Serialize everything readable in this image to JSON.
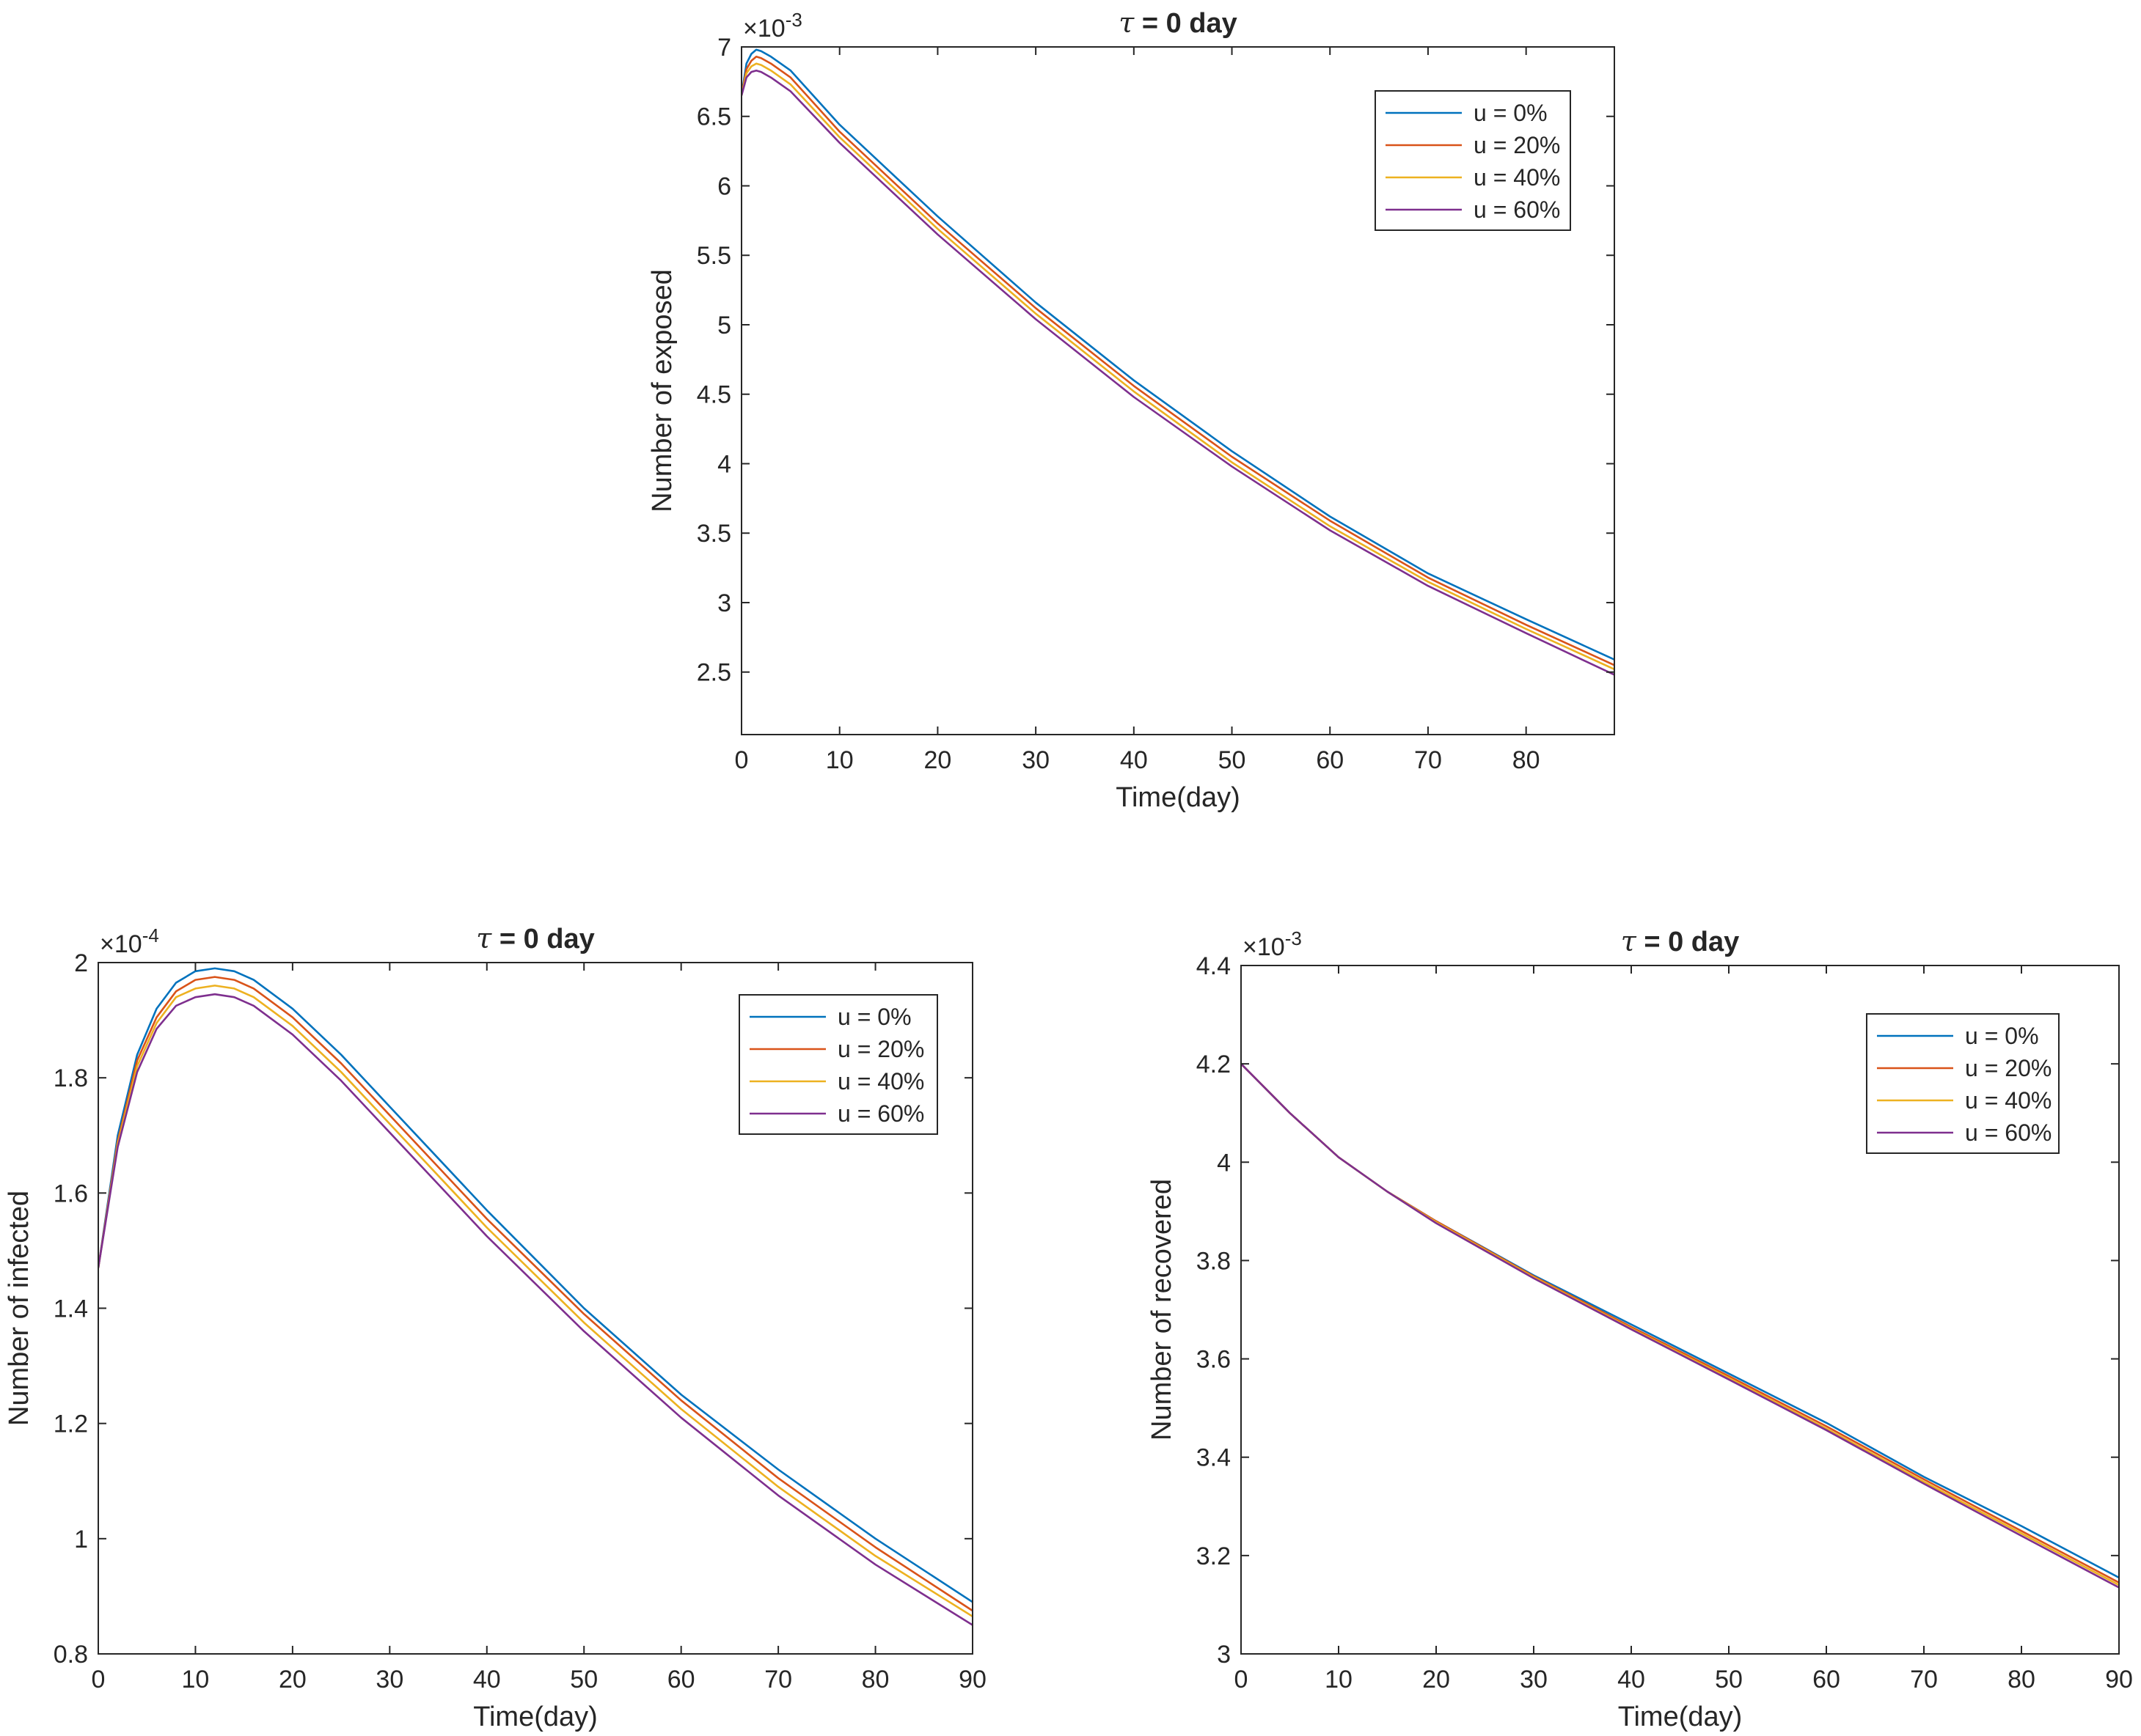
{
  "chart_data": [
    {
      "id": "exposed",
      "type": "line",
      "title": "τ = 0 day",
      "title_symbol": "τ",
      "title_rest": " = 0 day",
      "xlabel": "Time(day)",
      "ylabel": "Number of exposed",
      "exponent_text": "×10",
      "exponent_power": "-3",
      "xlim": [
        0,
        89
      ],
      "ylim": [
        2.05,
        7.0
      ],
      "xticks": [
        0,
        10,
        20,
        30,
        40,
        50,
        60,
        70,
        80
      ],
      "yticks": [
        2.5,
        3,
        3.5,
        4,
        4.5,
        5,
        5.5,
        6,
        6.5,
        7
      ],
      "ytick_labels": [
        "2.5",
        "3",
        "3.5",
        "4",
        "4.5",
        "5",
        "5.5",
        "6",
        "6.5",
        "7"
      ],
      "grid": false,
      "legend_position": "top-right",
      "x": [
        0,
        0.5,
        1,
        1.5,
        2,
        3,
        5,
        10,
        20,
        30,
        40,
        50,
        60,
        70,
        80,
        89
      ],
      "series": [
        {
          "name": "u = 0%",
          "color": "#0072BD",
          "values": [
            6.65,
            6.88,
            6.95,
            6.98,
            6.97,
            6.93,
            6.83,
            6.44,
            5.78,
            5.16,
            4.6,
            4.09,
            3.62,
            3.21,
            2.88,
            2.59
          ]
        },
        {
          "name": "u = 20%",
          "color": "#D95319",
          "values": [
            6.65,
            6.84,
            6.9,
            6.93,
            6.92,
            6.88,
            6.78,
            6.39,
            5.73,
            5.12,
            4.56,
            4.05,
            3.59,
            3.18,
            2.84,
            2.55
          ]
        },
        {
          "name": "u = 40%",
          "color": "#EDB120",
          "values": [
            6.65,
            6.81,
            6.86,
            6.88,
            6.87,
            6.83,
            6.73,
            6.35,
            5.69,
            5.08,
            4.52,
            4.01,
            3.55,
            3.15,
            2.81,
            2.52
          ]
        },
        {
          "name": "u = 60%",
          "color": "#7E2F8E",
          "values": [
            6.65,
            6.78,
            6.82,
            6.83,
            6.82,
            6.78,
            6.68,
            6.31,
            5.65,
            5.04,
            4.48,
            3.98,
            3.52,
            3.12,
            2.78,
            2.48
          ]
        }
      ]
    },
    {
      "id": "infected",
      "type": "line",
      "title": "τ = 0 day",
      "title_symbol": "τ",
      "title_rest": " = 0 day",
      "xlabel": "Time(day)",
      "ylabel": "Number of infected",
      "exponent_text": "×10",
      "exponent_power": "-4",
      "xlim": [
        0,
        90
      ],
      "ylim": [
        0.8,
        2.0
      ],
      "xticks": [
        0,
        10,
        20,
        30,
        40,
        50,
        60,
        70,
        80,
        90
      ],
      "yticks": [
        0.8,
        1,
        1.2,
        1.4,
        1.6,
        1.8,
        2
      ],
      "ytick_labels": [
        "0.8",
        "1",
        "1.2",
        "1.4",
        "1.6",
        "1.8",
        "2"
      ],
      "grid": false,
      "legend_position": "top-right",
      "x": [
        0,
        2,
        4,
        6,
        8,
        10,
        12,
        14,
        16,
        20,
        25,
        30,
        35,
        40,
        50,
        60,
        70,
        80,
        90
      ],
      "series": [
        {
          "name": "u = 0%",
          "color": "#0072BD",
          "values": [
            1.47,
            1.7,
            1.84,
            1.92,
            1.965,
            1.985,
            1.99,
            1.985,
            1.97,
            1.92,
            1.84,
            1.75,
            1.66,
            1.57,
            1.4,
            1.25,
            1.12,
            1.0,
            0.89
          ]
        },
        {
          "name": "u = 20%",
          "color": "#D95319",
          "values": [
            1.47,
            1.69,
            1.83,
            1.905,
            1.95,
            1.97,
            1.975,
            1.97,
            1.955,
            1.905,
            1.825,
            1.735,
            1.645,
            1.555,
            1.39,
            1.24,
            1.105,
            0.985,
            0.875
          ]
        },
        {
          "name": "u = 40%",
          "color": "#EDB120",
          "values": [
            1.47,
            1.685,
            1.82,
            1.895,
            1.94,
            1.955,
            1.96,
            1.955,
            1.94,
            1.89,
            1.81,
            1.72,
            1.63,
            1.54,
            1.375,
            1.225,
            1.09,
            0.97,
            0.865
          ]
        },
        {
          "name": "u = 60%",
          "color": "#7E2F8E",
          "values": [
            1.47,
            1.68,
            1.81,
            1.885,
            1.925,
            1.94,
            1.945,
            1.94,
            1.925,
            1.875,
            1.795,
            1.705,
            1.615,
            1.525,
            1.36,
            1.21,
            1.075,
            0.955,
            0.85
          ]
        }
      ]
    },
    {
      "id": "recovered",
      "type": "line",
      "title": "τ = 0 day",
      "title_symbol": "τ",
      "title_rest": " = 0 day",
      "xlabel": "Time(day)",
      "ylabel": "Number of recovered",
      "exponent_text": "×10",
      "exponent_power": "-3",
      "xlim": [
        0,
        90
      ],
      "ylim": [
        3.0,
        4.4
      ],
      "xticks": [
        0,
        10,
        20,
        30,
        40,
        50,
        60,
        70,
        80,
        90
      ],
      "yticks": [
        3,
        3.2,
        3.4,
        3.6,
        3.8,
        4,
        4.2,
        4.4
      ],
      "ytick_labels": [
        "3",
        "3.2",
        "3.4",
        "3.6",
        "3.8",
        "4",
        "4.2",
        "4.4"
      ],
      "grid": false,
      "legend_position": "top-right",
      "x": [
        0,
        5,
        10,
        15,
        20,
        30,
        40,
        50,
        60,
        70,
        80,
        90
      ],
      "series": [
        {
          "name": "u = 0%",
          "color": "#0072BD",
          "values": [
            4.2,
            4.1,
            4.01,
            3.94,
            3.88,
            3.77,
            3.67,
            3.57,
            3.47,
            3.36,
            3.26,
            3.155
          ]
        },
        {
          "name": "u = 20%",
          "color": "#D95319",
          "values": [
            4.2,
            4.1,
            4.01,
            3.94,
            3.88,
            3.768,
            3.665,
            3.565,
            3.463,
            3.355,
            3.25,
            3.145
          ]
        },
        {
          "name": "u = 40%",
          "color": "#EDB120",
          "values": [
            4.2,
            4.1,
            4.01,
            3.94,
            3.878,
            3.766,
            3.662,
            3.561,
            3.458,
            3.35,
            3.245,
            3.14
          ]
        },
        {
          "name": "u = 60%",
          "color": "#7E2F8E",
          "values": [
            4.2,
            4.1,
            4.01,
            3.94,
            3.876,
            3.764,
            3.66,
            3.558,
            3.455,
            3.346,
            3.24,
            3.135
          ]
        }
      ]
    }
  ]
}
